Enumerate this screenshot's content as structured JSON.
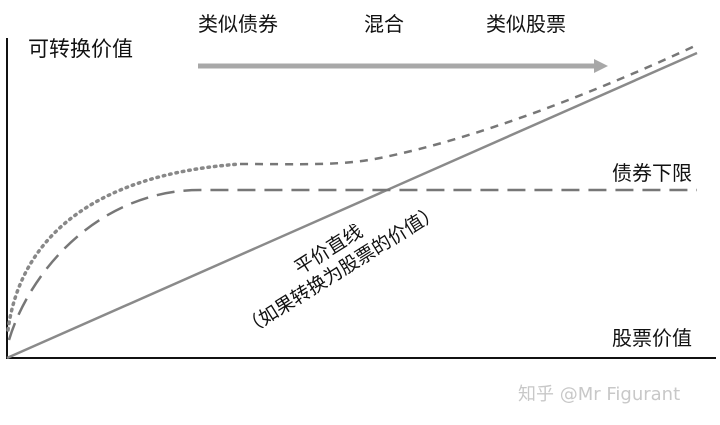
{
  "labels": {
    "y_axis": "可转换价值",
    "x_axis": "股票价值",
    "phase_bond": "类似债券",
    "phase_hybrid": "混合",
    "phase_equity": "类似股票",
    "bond_floor": "债券下限",
    "parity_line": "平价直线",
    "parity_note": "（如果转换为股票的价值）"
  },
  "watermark": "知乎 @Mr Figurant",
  "colors": {
    "axis": "#111111",
    "parity": "#8a8a8a",
    "curve": "#777777",
    "arrow": "#a8a8a8"
  }
}
